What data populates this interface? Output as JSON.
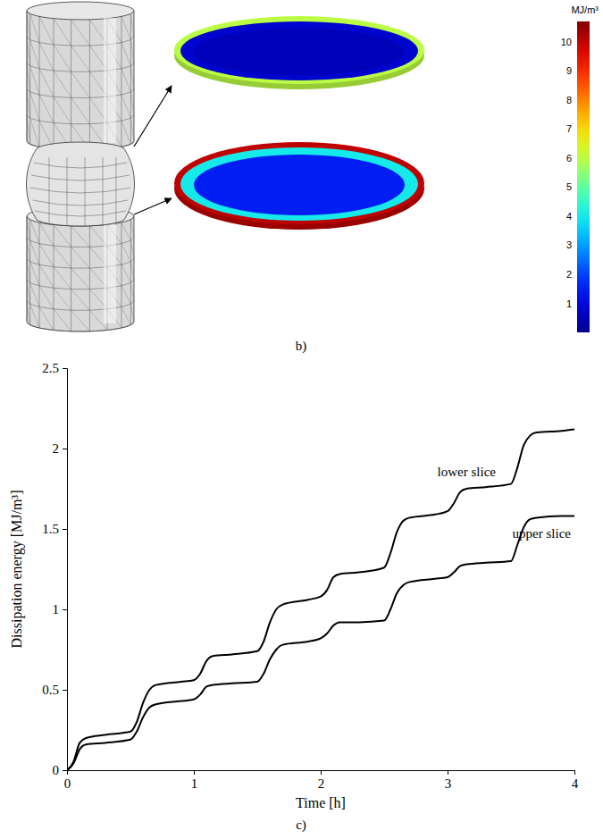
{
  "chart_data": [
    {
      "type": "image",
      "caption": "b)",
      "colorbar": {
        "title": "MJ/m³",
        "range": [
          0,
          10.7
        ],
        "ticks": [
          1,
          2,
          3,
          4,
          5,
          6,
          7,
          8,
          9,
          10
        ]
      },
      "slices": [
        {
          "interior": 0.5,
          "ring": 0.8,
          "rim": 6
        },
        {
          "interior": 1.5,
          "ring": 4,
          "rim": 10
        }
      ]
    },
    {
      "type": "line",
      "caption": "c)",
      "x_label": "Time [h]",
      "y_label": "Dissipation energy [MJ/m³]",
      "xlim": [
        0,
        4
      ],
      "ylim": [
        0,
        2.5
      ],
      "xticks": [
        0,
        1,
        2,
        3,
        4
      ],
      "yticks": [
        0,
        0.5,
        1,
        1.5,
        2,
        2.5
      ],
      "x": [
        0,
        0.05,
        0.1,
        0.15,
        0.3,
        0.5,
        0.55,
        0.6,
        0.65,
        0.7,
        0.9,
        1.0,
        1.05,
        1.1,
        1.15,
        1.3,
        1.5,
        1.55,
        1.6,
        1.65,
        1.7,
        1.9,
        2.0,
        2.05,
        2.1,
        2.15,
        2.3,
        2.5,
        2.55,
        2.6,
        2.65,
        2.7,
        2.9,
        3.0,
        3.05,
        3.1,
        3.15,
        3.3,
        3.5,
        3.55,
        3.6,
        3.65,
        3.7,
        3.9,
        4.0
      ],
      "series": [
        {
          "name": "lower slice",
          "color": "#000000",
          "values": [
            0,
            0.05,
            0.17,
            0.2,
            0.22,
            0.24,
            0.3,
            0.42,
            0.5,
            0.53,
            0.55,
            0.56,
            0.6,
            0.68,
            0.71,
            0.72,
            0.74,
            0.8,
            0.92,
            1.0,
            1.03,
            1.06,
            1.08,
            1.12,
            1.2,
            1.22,
            1.23,
            1.26,
            1.35,
            1.48,
            1.55,
            1.57,
            1.59,
            1.61,
            1.66,
            1.73,
            1.75,
            1.76,
            1.78,
            1.88,
            2.02,
            2.08,
            2.1,
            2.11,
            2.12
          ]
        },
        {
          "name": "upper slice",
          "color": "#000000",
          "values": [
            0,
            0.04,
            0.13,
            0.16,
            0.17,
            0.19,
            0.24,
            0.33,
            0.39,
            0.41,
            0.43,
            0.44,
            0.47,
            0.52,
            0.53,
            0.54,
            0.55,
            0.6,
            0.69,
            0.75,
            0.78,
            0.8,
            0.82,
            0.85,
            0.9,
            0.92,
            0.92,
            0.93,
            1.0,
            1.1,
            1.15,
            1.17,
            1.19,
            1.2,
            1.23,
            1.27,
            1.28,
            1.29,
            1.3,
            1.4,
            1.51,
            1.56,
            1.57,
            1.58,
            1.58
          ]
        }
      ]
    }
  ]
}
